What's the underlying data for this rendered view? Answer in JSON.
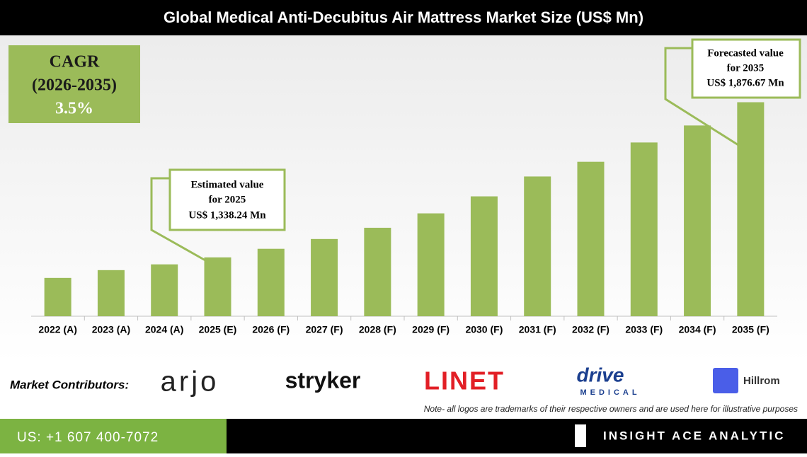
{
  "chart_data": {
    "type": "bar",
    "title": "Global Medical Anti-Decubitus Air Mattress Market Size (US$ Mn)",
    "categories": [
      "2022 (A)",
      "2023 (A)",
      "2024 (A)",
      "2025 (E)",
      "2026 (F)",
      "2027 (F)",
      "2028 (F)",
      "2029 (F)",
      "2030 (F)",
      "2031 (F)",
      "2032 (F)",
      "2033 (F)",
      "2034 (F)",
      "2035 (F)"
    ],
    "values": [
      1267,
      1294,
      1314,
      1338.24,
      1368,
      1402,
      1441,
      1491,
      1550,
      1619,
      1670,
      1737,
      1796,
      1876.67
    ],
    "color": "#9bbb59",
    "ylim": [
      1134,
      1900
    ],
    "cagr": [
      "CAGR",
      "(2026-2035)",
      "3.5%"
    ],
    "annotations": [
      {
        "lines": [
          "Estimated value",
          "for 2025",
          "US$ 1,338.24 Mn"
        ]
      },
      {
        "lines": [
          "Forecasted value",
          "for 2035",
          "US$ 1,876.67 Mn"
        ]
      }
    ]
  },
  "contributors": {
    "label": "Market Contributors:",
    "logos": [
      "arjo",
      "stryker",
      "LINET",
      "drive",
      "MEDICAL",
      "Hillrom"
    ],
    "note": "Note- all logos are trademarks of their respective owners and are used here for illustrative purposes"
  },
  "footer": {
    "phone": "US: +1 607 400-7072",
    "brand": "INSIGHT ACE ANALYTIC"
  }
}
